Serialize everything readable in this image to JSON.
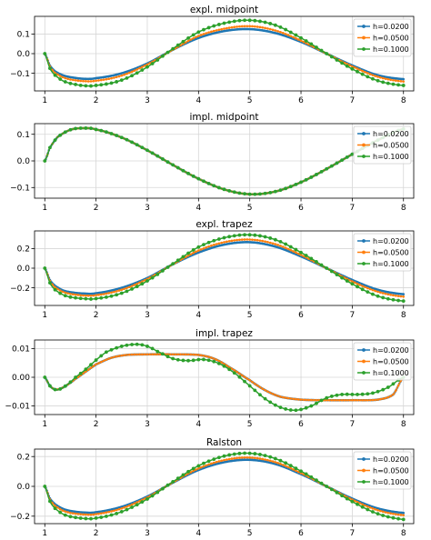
{
  "colors": {
    "h1": "#1f77b4",
    "h2": "#ff7f0e",
    "h3": "#2ca02c",
    "grid": "#d6d6d6",
    "axis": "#000000"
  },
  "chart_data": [
    {
      "type": "line",
      "title": "expl. midpoint",
      "xlim": [
        0.8,
        8.2
      ],
      "ylim": [
        -0.19,
        0.19
      ],
      "xticks": [
        1,
        2,
        3,
        4,
        5,
        6,
        7,
        8
      ],
      "yticks": [
        -0.1,
        0.0,
        0.1
      ],
      "ytick_labels": [
        "−0.1",
        "0.0",
        "0.1"
      ],
      "grid": true,
      "legend": "right",
      "series": [
        {
          "name": "h=0.0200",
          "color": "#1f77b4",
          "x": [
            1,
            1.1,
            1.2,
            1.35,
            1.5,
            1.75,
            2,
            2.5,
            3,
            3.5,
            4,
            4.5,
            5,
            5.5,
            6,
            6.5,
            7,
            7.5,
            8
          ],
          "y": [
            0,
            -0.06,
            -0.09,
            -0.11,
            -0.12,
            -0.128,
            -0.125,
            -0.1,
            -0.05,
            0.02,
            0.08,
            0.115,
            0.125,
            0.105,
            0.06,
            0.0,
            -0.06,
            -0.11,
            -0.13
          ]
        },
        {
          "name": "h=0.0500",
          "color": "#ff7f0e",
          "x": [
            1,
            1.1,
            1.2,
            1.35,
            1.5,
            1.75,
            2,
            2.5,
            3,
            3.5,
            4,
            4.5,
            5,
            5.5,
            6,
            6.5,
            7,
            7.5,
            8
          ],
          "y": [
            0,
            -0.065,
            -0.098,
            -0.12,
            -0.132,
            -0.14,
            -0.138,
            -0.112,
            -0.055,
            0.02,
            0.09,
            0.127,
            0.14,
            0.118,
            0.066,
            0.0,
            -0.065,
            -0.118,
            -0.142
          ]
        },
        {
          "name": "h=0.1000",
          "color": "#2ca02c",
          "x": [
            1,
            1.1,
            1.2,
            1.35,
            1.5,
            1.75,
            2,
            2.5,
            3,
            3.5,
            4,
            4.5,
            5,
            5.5,
            6,
            6.5,
            7,
            7.5,
            8
          ],
          "y": [
            0,
            -0.075,
            -0.11,
            -0.138,
            -0.152,
            -0.163,
            -0.162,
            -0.135,
            -0.068,
            0.025,
            0.11,
            0.155,
            0.17,
            0.145,
            0.08,
            0.0,
            -0.078,
            -0.138,
            -0.162
          ]
        }
      ]
    },
    {
      "type": "line",
      "title": "impl. midpoint",
      "xlim": [
        0.8,
        8.2
      ],
      "ylim": [
        -0.14,
        0.14
      ],
      "xticks": [
        1,
        2,
        3,
        4,
        5,
        6,
        7,
        8
      ],
      "yticks": [
        -0.1,
        0.0,
        0.1
      ],
      "ytick_labels": [
        "−0.1",
        "0.0",
        "0.1"
      ],
      "grid": true,
      "legend": "right",
      "series": [
        {
          "name": "h=0.0200",
          "color": "#1f77b4",
          "x": [
            1,
            1.1,
            1.25,
            1.5,
            1.75,
            2,
            2.5,
            3,
            3.5,
            4,
            4.5,
            5,
            5.5,
            6,
            6.5,
            7,
            7.5,
            8
          ],
          "y": [
            0,
            0.05,
            0.09,
            0.117,
            0.123,
            0.118,
            0.088,
            0.04,
            -0.015,
            -0.067,
            -0.107,
            -0.125,
            -0.115,
            -0.08,
            -0.03,
            0.025,
            0.078,
            0.12
          ]
        },
        {
          "name": "h=0.0500",
          "color": "#ff7f0e",
          "x": [
            1,
            1.1,
            1.25,
            1.5,
            1.75,
            2,
            2.5,
            3,
            3.5,
            4,
            4.5,
            5,
            5.5,
            6,
            6.5,
            7,
            7.5,
            8
          ],
          "y": [
            0,
            0.05,
            0.09,
            0.117,
            0.123,
            0.118,
            0.088,
            0.04,
            -0.015,
            -0.067,
            -0.107,
            -0.125,
            -0.115,
            -0.08,
            -0.03,
            0.025,
            0.078,
            0.12
          ]
        },
        {
          "name": "h=0.1000",
          "color": "#2ca02c",
          "x": [
            1,
            1.1,
            1.25,
            1.5,
            1.75,
            2,
            2.5,
            3,
            3.5,
            4,
            4.5,
            5,
            5.5,
            6,
            6.5,
            7,
            7.5,
            8
          ],
          "y": [
            0,
            0.05,
            0.09,
            0.117,
            0.123,
            0.118,
            0.088,
            0.04,
            -0.015,
            -0.067,
            -0.107,
            -0.125,
            -0.115,
            -0.08,
            -0.03,
            0.025,
            0.078,
            0.12
          ]
        }
      ]
    },
    {
      "type": "line",
      "title": "expl. trapez",
      "xlim": [
        0.8,
        8.2
      ],
      "ylim": [
        -0.38,
        0.38
      ],
      "xticks": [
        1,
        2,
        3,
        4,
        5,
        6,
        7,
        8
      ],
      "yticks": [
        -0.2,
        0.0,
        0.2
      ],
      "ytick_labels": [
        "−0.2",
        "0.0",
        "0.2"
      ],
      "grid": true,
      "legend": "right",
      "series": [
        {
          "name": "h=0.0200",
          "color": "#1f77b4",
          "x": [
            1,
            1.1,
            1.2,
            1.35,
            1.5,
            1.75,
            2,
            2.5,
            3,
            3.5,
            4,
            4.5,
            5,
            5.5,
            6,
            6.5,
            7,
            7.5,
            8
          ],
          "y": [
            0,
            -0.12,
            -0.18,
            -0.225,
            -0.245,
            -0.258,
            -0.255,
            -0.2,
            -0.1,
            0.04,
            0.16,
            0.24,
            0.265,
            0.22,
            0.12,
            0.0,
            -0.12,
            -0.22,
            -0.265
          ]
        },
        {
          "name": "h=0.0500",
          "color": "#ff7f0e",
          "x": [
            1,
            1.1,
            1.2,
            1.35,
            1.5,
            1.75,
            2,
            2.5,
            3,
            3.5,
            4,
            4.5,
            5,
            5.5,
            6,
            6.5,
            7,
            7.5,
            8
          ],
          "y": [
            0,
            -0.13,
            -0.195,
            -0.24,
            -0.262,
            -0.278,
            -0.275,
            -0.22,
            -0.11,
            0.04,
            0.18,
            0.265,
            0.292,
            0.245,
            0.135,
            0.0,
            -0.135,
            -0.24,
            -0.29
          ]
        },
        {
          "name": "h=0.1000",
          "color": "#2ca02c",
          "x": [
            1,
            1.1,
            1.2,
            1.35,
            1.5,
            1.75,
            2,
            2.5,
            3,
            3.5,
            4,
            4.5,
            5,
            5.5,
            6,
            6.5,
            7,
            7.5,
            8
          ],
          "y": [
            0,
            -0.15,
            -0.22,
            -0.27,
            -0.295,
            -0.31,
            -0.31,
            -0.255,
            -0.13,
            0.045,
            0.215,
            0.31,
            0.34,
            0.29,
            0.16,
            0.0,
            -0.16,
            -0.285,
            -0.335
          ]
        }
      ]
    },
    {
      "type": "line",
      "title": "impl. trapez",
      "xlim": [
        0.8,
        8.2
      ],
      "ylim": [
        -0.013,
        0.013
      ],
      "xticks": [
        1,
        2,
        3,
        4,
        5,
        6,
        7,
        8
      ],
      "yticks": [
        -0.01,
        0.0,
        0.01
      ],
      "ytick_labels": [
        "−0.01",
        "0.00",
        "0.01"
      ],
      "grid": true,
      "legend": "right",
      "series": [
        {
          "name": "h=0.0200",
          "color": "#1f77b4",
          "x": [
            1,
            1.1,
            1.2,
            1.3,
            1.45,
            1.6,
            1.8,
            2,
            2.3,
            2.6,
            3,
            3.5,
            4,
            4.3,
            4.6,
            5,
            5.3,
            5.6,
            6,
            6.5,
            7,
            7.5,
            7.8,
            8
          ],
          "y": [
            0,
            -0.003,
            -0.0042,
            -0.004,
            -0.0025,
            -0.0005,
            0.002,
            0.0045,
            0.0068,
            0.0078,
            0.008,
            0.008,
            0.0078,
            0.0065,
            0.0035,
            -0.001,
            -0.0045,
            -0.0068,
            -0.0078,
            -0.008,
            -0.008,
            -0.0078,
            -0.006,
            0.0
          ]
        },
        {
          "name": "h=0.0500",
          "color": "#ff7f0e",
          "x": [
            1,
            1.1,
            1.2,
            1.3,
            1.45,
            1.6,
            1.8,
            2,
            2.3,
            2.6,
            3,
            3.5,
            4,
            4.3,
            4.6,
            5,
            5.3,
            5.6,
            6,
            6.5,
            7,
            7.5,
            7.8,
            8
          ],
          "y": [
            0,
            -0.003,
            -0.0042,
            -0.004,
            -0.0025,
            -0.0005,
            0.002,
            0.0045,
            0.0068,
            0.0078,
            0.008,
            0.008,
            0.0078,
            0.0065,
            0.0035,
            -0.001,
            -0.0045,
            -0.0068,
            -0.0078,
            -0.008,
            -0.008,
            -0.0078,
            -0.006,
            0.0
          ]
        },
        {
          "name": "h=0.1000",
          "color": "#2ca02c",
          "x": [
            1,
            1.1,
            1.2,
            1.3,
            1.45,
            1.6,
            1.8,
            2,
            2.2,
            2.5,
            2.8,
            3,
            3.2,
            3.5,
            3.8,
            4.1,
            4.4,
            4.7,
            5,
            5.3,
            5.6,
            5.9,
            6.2,
            6.5,
            6.8,
            7.1,
            7.4,
            7.7,
            8
          ],
          "y": [
            0,
            -0.003,
            -0.0043,
            -0.0041,
            -0.0024,
            0.0,
            0.0028,
            0.006,
            0.0088,
            0.0108,
            0.0115,
            0.0108,
            0.009,
            0.0065,
            0.0058,
            0.0062,
            0.0048,
            0.0015,
            -0.003,
            -0.0075,
            -0.0105,
            -0.0115,
            -0.01,
            -0.0072,
            -0.006,
            -0.006,
            -0.0055,
            -0.0035,
            0.0
          ]
        }
      ]
    },
    {
      "type": "line",
      "title": "Ralston",
      "xlim": [
        0.8,
        8.2
      ],
      "ylim": [
        -0.25,
        0.25
      ],
      "xticks": [
        1,
        2,
        3,
        4,
        5,
        6,
        7,
        8
      ],
      "yticks": [
        -0.2,
        0.0,
        0.2
      ],
      "ytick_labels": [
        "−0.2",
        "0.0",
        "0.2"
      ],
      "grid": true,
      "legend": "right",
      "series": [
        {
          "name": "h=0.0200",
          "color": "#1f77b4",
          "x": [
            1,
            1.1,
            1.2,
            1.35,
            1.5,
            1.75,
            2,
            2.5,
            3,
            3.5,
            4,
            4.5,
            5,
            5.5,
            6,
            6.5,
            7,
            7.5,
            8
          ],
          "y": [
            0,
            -0.08,
            -0.12,
            -0.15,
            -0.165,
            -0.175,
            -0.173,
            -0.137,
            -0.068,
            0.025,
            0.11,
            0.162,
            0.178,
            0.15,
            0.082,
            0.0,
            -0.082,
            -0.148,
            -0.178
          ]
        },
        {
          "name": "h=0.0500",
          "color": "#ff7f0e",
          "x": [
            1,
            1.1,
            1.2,
            1.35,
            1.5,
            1.75,
            2,
            2.5,
            3,
            3.5,
            4,
            4.5,
            5,
            5.5,
            6,
            6.5,
            7,
            7.5,
            8
          ],
          "y": [
            0,
            -0.088,
            -0.13,
            -0.162,
            -0.178,
            -0.188,
            -0.186,
            -0.148,
            -0.074,
            0.027,
            0.12,
            0.176,
            0.193,
            0.162,
            0.089,
            0.0,
            -0.089,
            -0.16,
            -0.193
          ]
        },
        {
          "name": "h=0.1000",
          "color": "#2ca02c",
          "x": [
            1,
            1.1,
            1.2,
            1.35,
            1.5,
            1.75,
            2,
            2.5,
            3,
            3.5,
            4,
            4.5,
            5,
            5.5,
            6,
            6.5,
            7,
            7.5,
            8
          ],
          "y": [
            0,
            -0.1,
            -0.148,
            -0.185,
            -0.203,
            -0.215,
            -0.213,
            -0.17,
            -0.085,
            0.031,
            0.138,
            0.203,
            0.222,
            0.186,
            0.102,
            0.0,
            -0.102,
            -0.184,
            -0.222
          ]
        }
      ]
    }
  ]
}
